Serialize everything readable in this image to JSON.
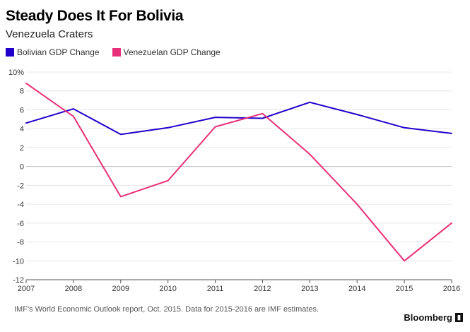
{
  "title": "Steady Does It For Bolivia",
  "subtitle": "Venezuela Craters",
  "footnote": "IMF's World Economic Outlook report, Oct. 2015. Data for 2015-2016 are IMF estimates.",
  "brand": "Bloomberg",
  "brand_icon": "bloomberg-logo-icon",
  "chart_data": {
    "type": "line",
    "title": "Steady Does It For Bolivia",
    "subtitle": "Venezuela Craters",
    "x": [
      "2007",
      "2008",
      "2009",
      "2010",
      "2011",
      "2012",
      "2013",
      "2014",
      "2015",
      "2016"
    ],
    "ylim": [
      -12,
      10
    ],
    "yticks": [
      "10%",
      "8",
      "6",
      "4",
      "2",
      "0",
      "-2",
      "-4",
      "-6",
      "-8",
      "-10",
      "-12"
    ],
    "grid": true,
    "legend_position": "top-left",
    "series": [
      {
        "name": "Bolivian GDP Change",
        "color": "#2200cc",
        "values": [
          4.6,
          6.1,
          3.4,
          4.1,
          5.2,
          5.1,
          6.8,
          5.5,
          4.1,
          3.5
        ]
      },
      {
        "name": "Venezuelan GDP Change",
        "color": "#e8307a",
        "values": [
          8.8,
          5.3,
          -3.2,
          -1.5,
          4.2,
          5.6,
          1.3,
          -4.0,
          -10.0,
          -6.0
        ]
      }
    ]
  }
}
